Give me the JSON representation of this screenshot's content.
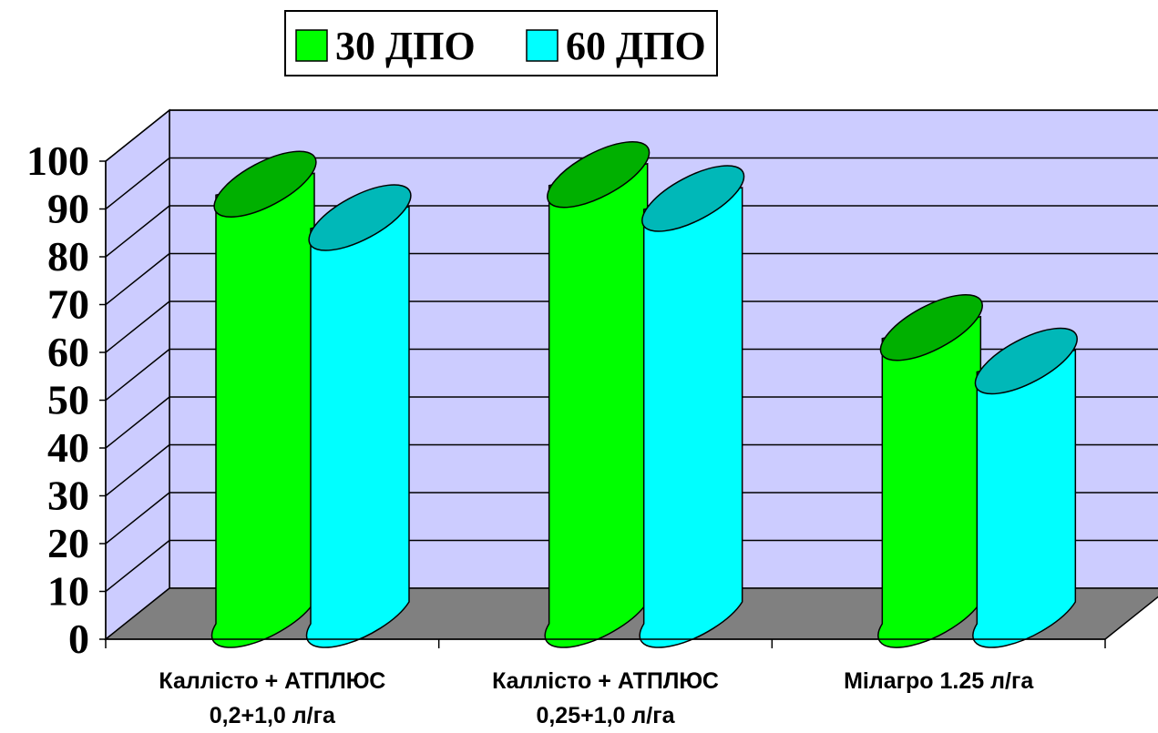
{
  "chart_data": {
    "type": "bar",
    "categories": [
      [
        "Каллісто + АТПЛЮС",
        "0,2+1,0 л/га"
      ],
      [
        "Каллісто + АТПЛЮС",
        "0,25+1,0 л/га"
      ],
      [
        "Мілагро 1.25 л/га"
      ]
    ],
    "series": [
      {
        "name": "30 ДПО",
        "values": [
          91,
          93,
          61
        ]
      },
      {
        "name": "60 ДПО",
        "values": [
          84,
          88,
          54
        ]
      }
    ],
    "ylim": [
      0,
      100
    ],
    "yticks": [
      "0",
      "10",
      "20",
      "30",
      "40",
      "50",
      "60",
      "70",
      "80",
      "90",
      "100"
    ],
    "grid": true,
    "legend": "top",
    "colors": {
      "series": [
        "#00ff00",
        "#00ffff"
      ],
      "series_dark": [
        "#00b000",
        "#00b8b8"
      ],
      "wall": "#ccccff",
      "floor": "#808080"
    }
  }
}
